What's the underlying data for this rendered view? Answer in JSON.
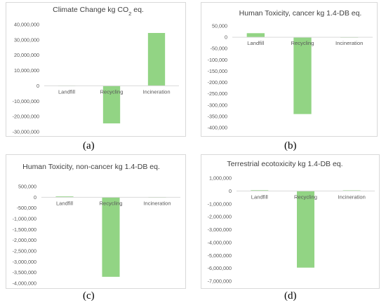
{
  "chart_data": [
    {
      "type": "bar",
      "panel": "(a)",
      "title": "Climate Change kg CO",
      "title_sub": "2",
      "title_suffix": " eq.",
      "categories": [
        "Landfill",
        "Recycling",
        "Incineration"
      ],
      "values": [
        200000,
        -24500000,
        34500000
      ],
      "ylim": [
        -30000000,
        40000000
      ],
      "ytick_values": [
        -30000000,
        -20000000,
        -10000000,
        0,
        10000000,
        20000000,
        30000000,
        40000000
      ],
      "ytick_labels": [
        "-30,000,000",
        "-20,000,000",
        "-10,000,000",
        "0",
        "10,000,000",
        "20,000,000",
        "30,000,000",
        "40,000,000"
      ],
      "grid": false,
      "bar_color": "#92d484"
    },
    {
      "type": "bar",
      "panel": "(b)",
      "title": "Human Toxicity, cancer kg 1.4-DB eq.",
      "categories": [
        "Landfill",
        "Recycling",
        "Incineration"
      ],
      "values": [
        18000,
        -340000,
        500
      ],
      "ylim": [
        -400000,
        50000
      ],
      "ytick_values": [
        -400000,
        -350000,
        -300000,
        -250000,
        -200000,
        -150000,
        -100000,
        -50000,
        0,
        50000
      ],
      "ytick_labels": [
        "-400,000",
        "-350,000",
        "-300,000",
        "-250,000",
        "-200,000",
        "-150,000",
        "-100,000",
        "-50,000",
        "0",
        "50,000"
      ],
      "grid": false,
      "bar_color": "#92d484"
    },
    {
      "type": "bar",
      "panel": "(c)",
      "title": "Human Toxicity, non-cancer kg 1.4-DB eq.",
      "categories": [
        "Landfill",
        "Recycling",
        "Incineration"
      ],
      "values": [
        40000,
        -3700000,
        5000
      ],
      "ylim": [
        -4000000,
        500000
      ],
      "ytick_values": [
        -4000000,
        -3500000,
        -3000000,
        -2500000,
        -2000000,
        -1500000,
        -1000000,
        -500000,
        0,
        500000
      ],
      "ytick_labels": [
        "-4,000,000",
        "-3,500,000",
        "-3,000,000",
        "-2,500,000",
        "-2,000,000",
        "-1,500,000",
        "-1,000,000",
        "-500,000",
        "0",
        "500,000"
      ],
      "grid": false,
      "bar_color": "#92d484"
    },
    {
      "type": "bar",
      "panel": "(d)",
      "title": "Terrestrial ecotoxicity kg 1.4-DB eq.",
      "categories": [
        "Landfill",
        "Recycling",
        "Incineration"
      ],
      "values": [
        60000,
        -5950000,
        50000
      ],
      "ylim": [
        -7000000,
        1000000
      ],
      "ytick_values": [
        -7000000,
        -6000000,
        -5000000,
        -4000000,
        -3000000,
        -2000000,
        -1000000,
        0,
        1000000
      ],
      "ytick_labels": [
        "-7,000,000",
        "-6,000,000",
        "-5,000,000",
        "-4,000,000",
        "-3,000,000",
        "-2,000,000",
        "-1,000,000",
        "0",
        "1,000,000"
      ],
      "grid": false,
      "bar_color": "#92d484"
    }
  ]
}
